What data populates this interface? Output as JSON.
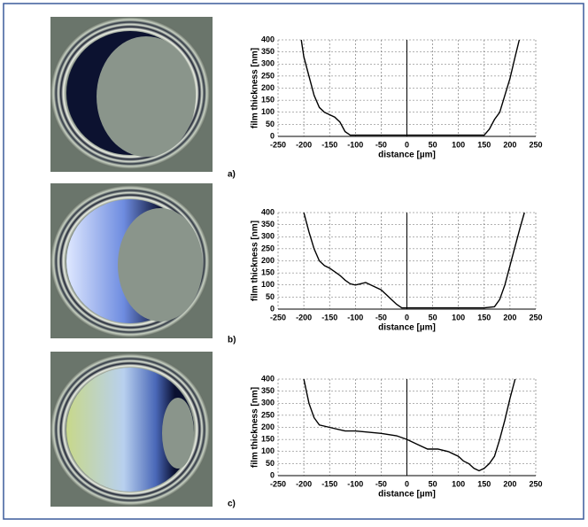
{
  "chart_data": [
    {
      "type": "line",
      "panel_label": "a)",
      "xlabel": "distance [µm]",
      "ylabel": "film thickness [nm]",
      "color": "#000000",
      "grid": true,
      "xlim": [
        -250,
        250
      ],
      "xticks": [
        -250,
        -200,
        -150,
        -100,
        -50,
        0,
        50,
        100,
        150,
        200,
        250
      ],
      "ylim": [
        0,
        400
      ],
      "yticks": [
        0,
        50,
        100,
        150,
        200,
        250,
        300,
        350,
        400
      ],
      "x": [
        -205,
        -200,
        -190,
        -180,
        -170,
        -160,
        -150,
        -140,
        -130,
        -120,
        -110,
        -50,
        0,
        50,
        100,
        150,
        160,
        170,
        180,
        190,
        200,
        210,
        218
      ],
      "values": [
        400,
        330,
        250,
        170,
        120,
        100,
        90,
        80,
        60,
        20,
        5,
        5,
        5,
        5,
        5,
        5,
        30,
        70,
        100,
        170,
        240,
        330,
        400
      ]
    },
    {
      "type": "line",
      "panel_label": "b)",
      "xlabel": "distance [µm]",
      "ylabel": "film thickness [nm]",
      "color": "#000000",
      "grid": true,
      "xlim": [
        -250,
        250
      ],
      "xticks": [
        -250,
        -200,
        -150,
        -100,
        -50,
        0,
        50,
        100,
        150,
        200,
        250
      ],
      "ylim": [
        0,
        400
      ],
      "yticks": [
        0,
        50,
        100,
        150,
        200,
        250,
        300,
        350,
        400
      ],
      "x": [
        -200,
        -190,
        -180,
        -170,
        -160,
        -150,
        -140,
        -130,
        -120,
        -110,
        -100,
        -90,
        -80,
        -70,
        -60,
        -50,
        -40,
        -30,
        -20,
        -10,
        0,
        50,
        100,
        150,
        170,
        180,
        190,
        200,
        210,
        220,
        228
      ],
      "values": [
        400,
        320,
        250,
        200,
        180,
        170,
        155,
        140,
        120,
        105,
        100,
        105,
        110,
        100,
        90,
        80,
        60,
        40,
        20,
        5,
        5,
        5,
        5,
        5,
        10,
        40,
        100,
        180,
        260,
        340,
        400
      ]
    },
    {
      "type": "line",
      "panel_label": "c)",
      "xlabel": "distance [µm]",
      "ylabel": "film thickness [nm]",
      "color": "#000000",
      "grid": true,
      "xlim": [
        -250,
        250
      ],
      "xticks": [
        -250,
        -200,
        -150,
        -100,
        -50,
        0,
        50,
        100,
        150,
        200,
        250
      ],
      "ylim": [
        0,
        400
      ],
      "yticks": [
        0,
        50,
        100,
        150,
        200,
        250,
        300,
        350,
        400
      ],
      "x": [
        -200,
        -190,
        -180,
        -170,
        -150,
        -120,
        -100,
        -50,
        -20,
        0,
        20,
        40,
        60,
        80,
        100,
        110,
        120,
        130,
        140,
        150,
        160,
        170,
        180,
        190,
        200,
        210
      ],
      "values": [
        400,
        300,
        240,
        210,
        200,
        185,
        185,
        175,
        165,
        150,
        130,
        110,
        110,
        100,
        80,
        60,
        50,
        30,
        20,
        30,
        50,
        80,
        150,
        230,
        320,
        400
      ]
    }
  ]
}
